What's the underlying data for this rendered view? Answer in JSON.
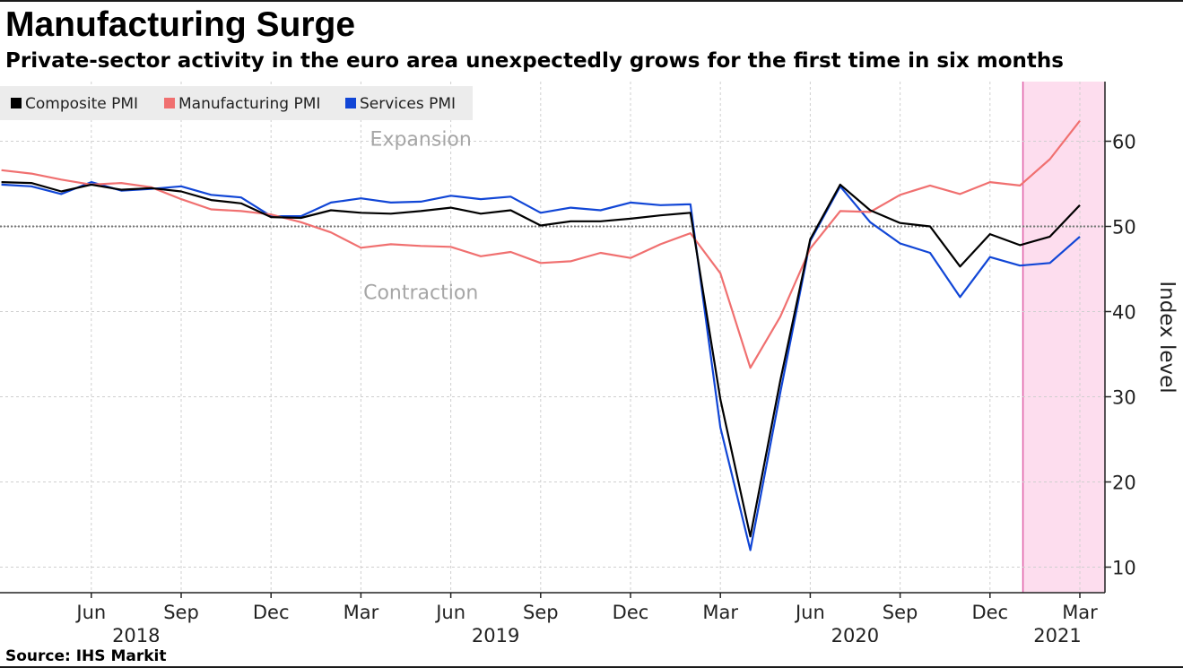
{
  "chart_data": {
    "type": "line",
    "title": "Manufacturing Surge",
    "subtitle": "Private-sector activity in the euro area unexpectedly grows for the first time in six months",
    "source": "Source: IHS Markit",
    "ylabel": "Index level",
    "xlabel": "",
    "ylim": [
      7,
      67
    ],
    "yticks": [
      10,
      20,
      30,
      40,
      50,
      60
    ],
    "y_axis_side": "right",
    "grid": true,
    "legend_position": "top-left",
    "reference_line": {
      "value": 50,
      "style": "dotted"
    },
    "annotations": [
      {
        "text": "Expansion",
        "x": "2019-05",
        "y": 59.5
      },
      {
        "text": "Contraction",
        "x": "2019-05",
        "y": 41.5
      }
    ],
    "highlight": {
      "from": "2021-02",
      "to": "2021-03",
      "color": "#fdddee"
    },
    "x_tick_labels": [
      {
        "date": "2018-06",
        "label": "Jun",
        "year": "2018"
      },
      {
        "date": "2018-09",
        "label": "Sep"
      },
      {
        "date": "2018-12",
        "label": "Dec"
      },
      {
        "date": "2019-03",
        "label": "Mar"
      },
      {
        "date": "2019-06",
        "label": "Jun",
        "year": "2019"
      },
      {
        "date": "2019-09",
        "label": "Sep"
      },
      {
        "date": "2019-12",
        "label": "Dec"
      },
      {
        "date": "2020-03",
        "label": "Mar"
      },
      {
        "date": "2020-06",
        "label": "Jun",
        "year": "2020"
      },
      {
        "date": "2020-09",
        "label": "Sep"
      },
      {
        "date": "2020-12",
        "label": "Dec"
      },
      {
        "date": "2021-03",
        "label": "Mar",
        "year": "2021"
      }
    ],
    "x": [
      "2018-03",
      "2018-04",
      "2018-05",
      "2018-06",
      "2018-07",
      "2018-08",
      "2018-09",
      "2018-10",
      "2018-11",
      "2018-12",
      "2019-01",
      "2019-02",
      "2019-03",
      "2019-04",
      "2019-05",
      "2019-06",
      "2019-07",
      "2019-08",
      "2019-09",
      "2019-10",
      "2019-11",
      "2019-12",
      "2020-01",
      "2020-02",
      "2020-03",
      "2020-04",
      "2020-05",
      "2020-06",
      "2020-07",
      "2020-08",
      "2020-09",
      "2020-10",
      "2020-11",
      "2020-12",
      "2021-01",
      "2021-02",
      "2021-03"
    ],
    "series": [
      {
        "name": "Composite PMI",
        "color": "#000000",
        "values": [
          55.2,
          55.1,
          54.1,
          54.9,
          54.3,
          54.5,
          54.1,
          53.1,
          52.7,
          51.1,
          51.0,
          51.9,
          51.6,
          51.5,
          51.8,
          52.2,
          51.5,
          51.9,
          50.1,
          50.6,
          50.6,
          50.9,
          51.3,
          51.6,
          29.7,
          13.6,
          31.9,
          48.5,
          54.9,
          51.9,
          50.4,
          50.0,
          45.3,
          49.1,
          47.8,
          48.8,
          52.5
        ]
      },
      {
        "name": "Manufacturing PMI",
        "color": "#f07070",
        "values": [
          56.6,
          56.2,
          55.5,
          54.9,
          55.1,
          54.6,
          53.2,
          52.0,
          51.8,
          51.4,
          50.5,
          49.3,
          47.5,
          47.9,
          47.7,
          47.6,
          46.5,
          47.0,
          45.7,
          45.9,
          46.9,
          46.3,
          47.9,
          49.2,
          44.5,
          33.4,
          39.4,
          47.4,
          51.8,
          51.7,
          53.7,
          54.8,
          53.8,
          55.2,
          54.8,
          57.9,
          62.4
        ]
      },
      {
        "name": "Services PMI",
        "color": "#1146d6",
        "values": [
          54.9,
          54.7,
          53.8,
          55.2,
          54.2,
          54.4,
          54.7,
          53.7,
          53.4,
          51.2,
          51.2,
          52.8,
          53.3,
          52.8,
          52.9,
          53.6,
          53.2,
          53.5,
          51.6,
          52.2,
          51.9,
          52.8,
          52.5,
          52.6,
          26.4,
          12.0,
          30.5,
          48.3,
          54.7,
          50.5,
          48.0,
          46.9,
          41.7,
          46.4,
          45.4,
          45.7,
          48.8
        ]
      }
    ]
  }
}
